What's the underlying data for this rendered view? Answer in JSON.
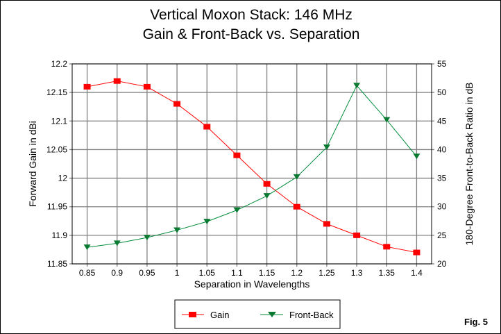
{
  "chart_data": {
    "type": "line",
    "title": [
      "Vertical Moxon Stack: 146 MHz",
      "Gain & Front-Back vs. Separation"
    ],
    "xlabel": "Separation in Wavelengths",
    "ylabel": "Forward Gain in dBi",
    "y2label": "180-Degree Front-to-Back Ratio in dB",
    "categories": [
      "0.85",
      "0.9",
      "0.95",
      "1",
      "1.05",
      "1.1",
      "1.15",
      "1.2",
      "1.25",
      "1.3",
      "1.35",
      "1.4"
    ],
    "ylim": [
      11.85,
      12.2
    ],
    "yticks": [
      "11.85",
      "11.9",
      "11.95",
      "12",
      "12.05",
      "12.1",
      "12.15",
      "12.2"
    ],
    "y2lim": [
      20,
      55
    ],
    "y2ticks": [
      "20",
      "25",
      "30",
      "35",
      "40",
      "45",
      "50",
      "55"
    ],
    "grid": true,
    "legend_position": "bottom-center",
    "series": [
      {
        "name": "Gain",
        "axis": "left",
        "color": "#ff0000",
        "marker": "square",
        "values": [
          12.16,
          12.17,
          12.16,
          12.13,
          12.09,
          12.04,
          11.99,
          11.95,
          11.92,
          11.9,
          11.88,
          11.87
        ]
      },
      {
        "name": "Front-Back",
        "axis": "right",
        "color": "#008c3a",
        "marker": "triangle-down",
        "values": [
          22.9,
          23.6,
          24.6,
          25.9,
          27.4,
          29.4,
          31.9,
          35.2,
          40.4,
          51.2,
          45.2,
          38.8
        ]
      }
    ],
    "annotation": "Fig. 5"
  }
}
